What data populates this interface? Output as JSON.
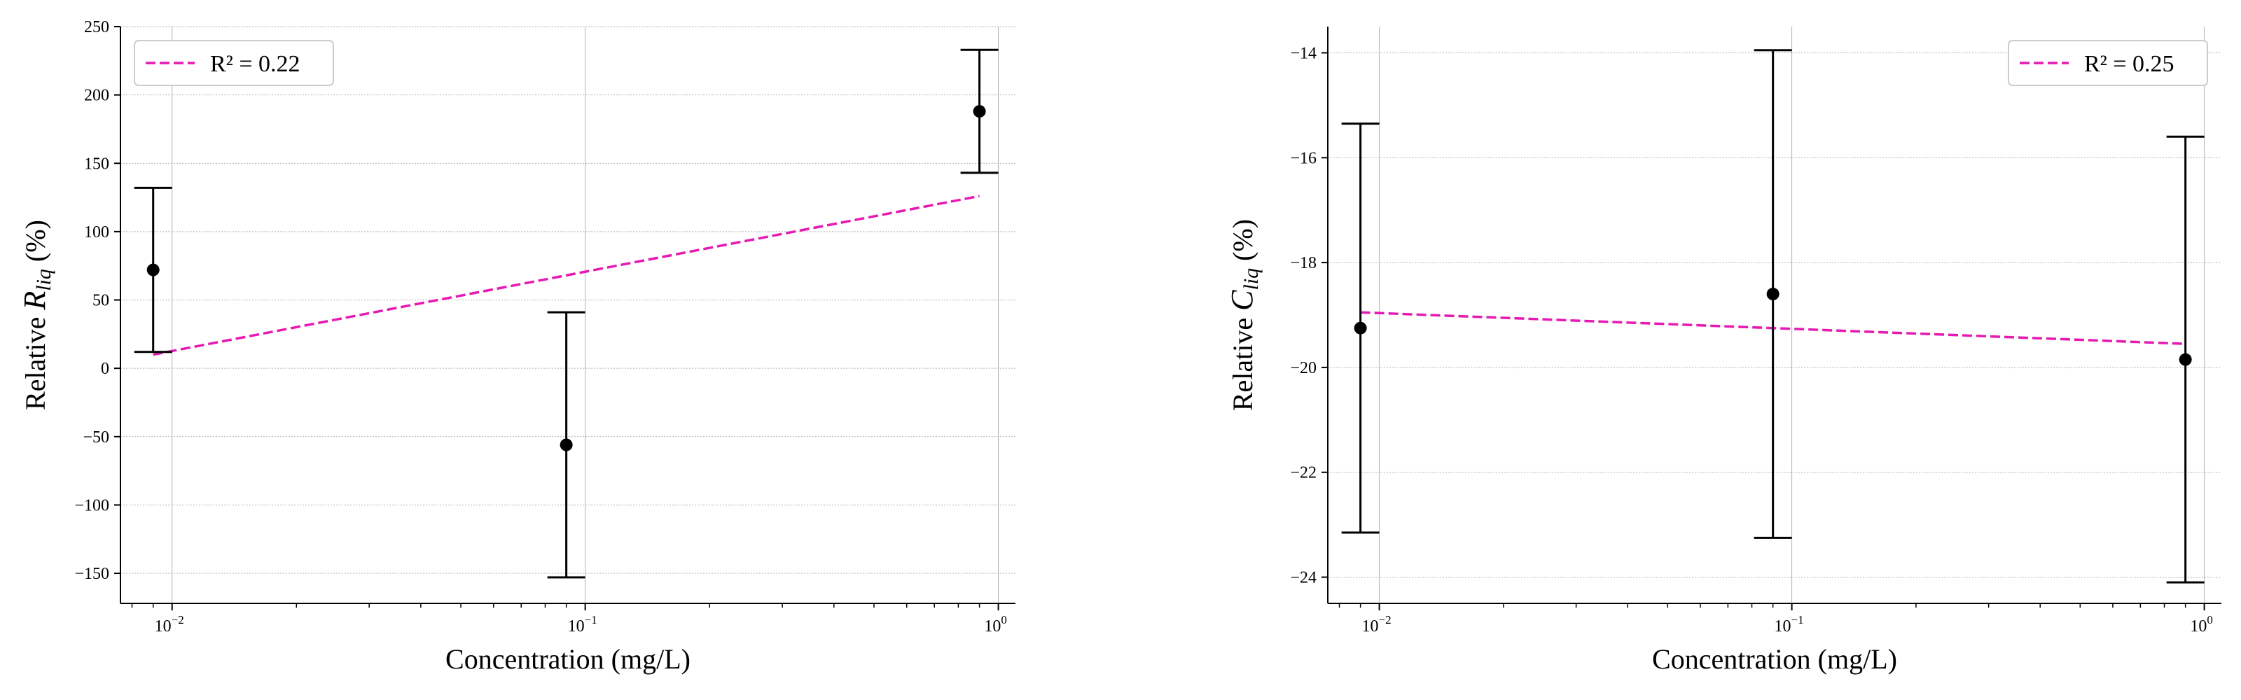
{
  "colors": {
    "fit": "#e619b3",
    "points": "#000000",
    "grid": "#b0b0b0"
  },
  "chart_data": [
    {
      "type": "scatter",
      "xscale": "log",
      "xlim": [
        0.0075,
        1.1
      ],
      "ylim": [
        -172,
        250
      ],
      "xlabel": "Concentration (mg/L)",
      "ylabel_text": "Relative ",
      "ylabel_symbol": "R",
      "ylabel_sub": "liq",
      "ylabel_unit": " (%)",
      "grid": true,
      "legend_position": "upper-left",
      "legend_label": "R² = 0.22",
      "x_ticks": [
        0.01,
        0.1,
        1
      ],
      "x_tick_bases": [
        "10",
        "10",
        "10"
      ],
      "x_tick_exps": [
        "−2",
        "−1",
        "0"
      ],
      "y_ticks": [
        -150,
        -100,
        -50,
        0,
        50,
        100,
        150,
        200,
        250
      ],
      "y_tick_labels": [
        "−150",
        "−100",
        "−50",
        "0",
        "50",
        "100",
        "150",
        "200",
        "250"
      ],
      "points": {
        "x": [
          0.009,
          0.09,
          0.9
        ],
        "y": [
          72,
          -56,
          188
        ],
        "err": [
          60,
          97,
          45
        ]
      },
      "fit": {
        "x": [
          0.009,
          0.9
        ],
        "y": [
          10,
          126
        ]
      }
    },
    {
      "type": "scatter",
      "xscale": "log",
      "xlim": [
        0.0075,
        1.1
      ],
      "ylim": [
        -24.5,
        -13.5
      ],
      "xlabel": "Concentration (mg/L)",
      "ylabel_text": "Relative ",
      "ylabel_symbol": "C",
      "ylabel_sub": "liq",
      "ylabel_unit": " (%)",
      "grid": true,
      "legend_position": "upper-right",
      "legend_label": "R² = 0.25",
      "x_ticks": [
        0.01,
        0.1,
        1
      ],
      "x_tick_bases": [
        "10",
        "10",
        "10"
      ],
      "x_tick_exps": [
        "−2",
        "−1",
        "0"
      ],
      "y_ticks": [
        -24,
        -22,
        -20,
        -18,
        -16,
        -14
      ],
      "y_tick_labels": [
        "−24",
        "−22",
        "−20",
        "−18",
        "−16",
        "−14"
      ],
      "points": {
        "x": [
          0.009,
          0.09,
          0.9
        ],
        "y": [
          -19.25,
          -18.6,
          -19.85
        ],
        "err": [
          3.9,
          4.65,
          4.25
        ]
      },
      "fit": {
        "x": [
          0.009,
          0.9
        ],
        "y": [
          -18.95,
          -19.55
        ]
      }
    }
  ]
}
